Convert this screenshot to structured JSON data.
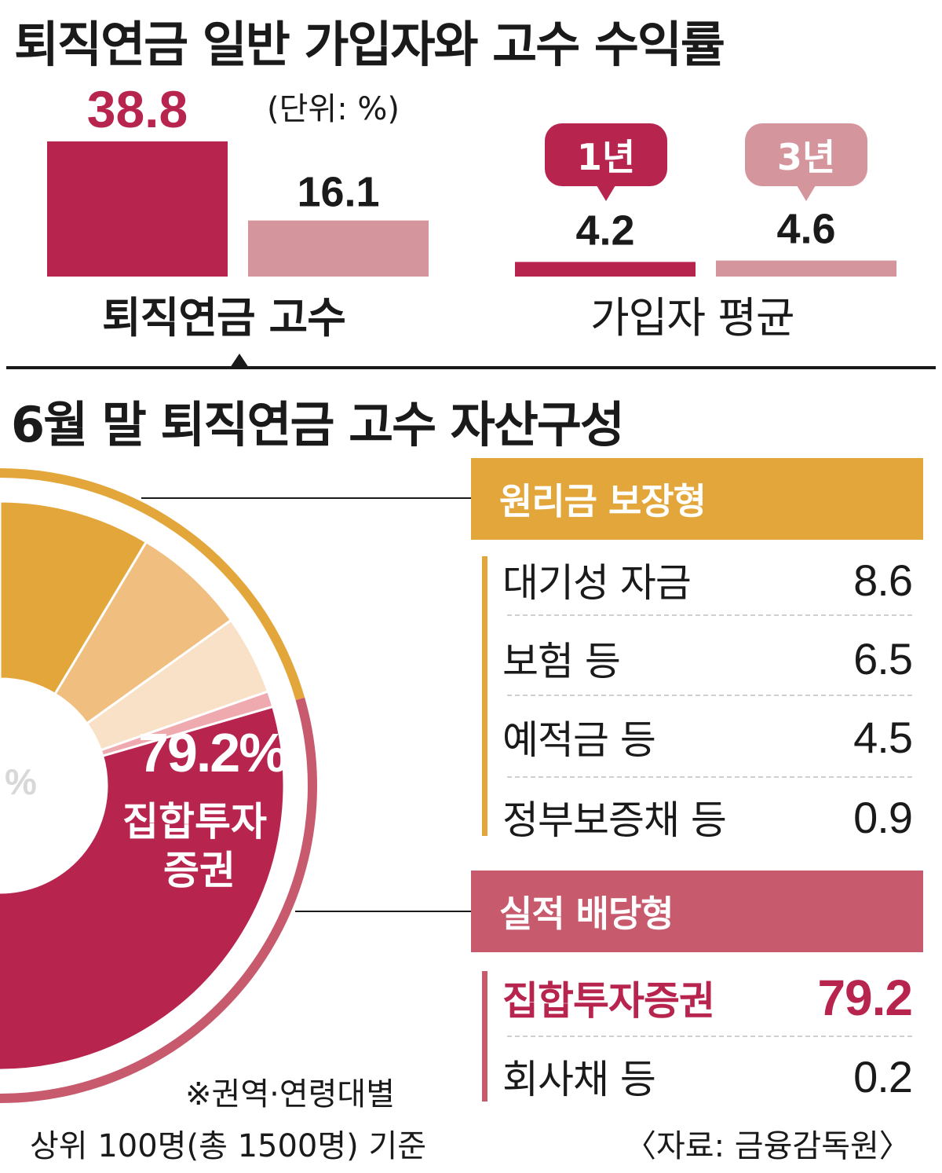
{
  "top_title": "퇴직연금 일반 가입자와 고수 수익률",
  "unit_label": "(단위: %)",
  "expert_label": "퇴직연금 고수",
  "avg_label": "가입자 평균",
  "bubble_1y": "1년",
  "bubble_3y": "3년",
  "bottom_title": "6월 말 퇴직연금 고수 자산구성",
  "donut_center_fragment": "%",
  "donut_value_label": "79.2%",
  "donut_name_line1": "집합투자",
  "donut_name_line2": "증권",
  "guaranteed": {
    "title": "원리금 보장형",
    "items": [
      {
        "label": "대기성 자금",
        "value": "8.6"
      },
      {
        "label": "보험 등",
        "value": "6.5"
      },
      {
        "label": "예적금 등",
        "value": "4.5"
      },
      {
        "label": "정부보증채 등",
        "value": "0.9"
      }
    ]
  },
  "performance": {
    "title": "실적 배당형",
    "items": [
      {
        "label": "집합투자증권",
        "value": "79.2"
      },
      {
        "label": "회사채 등",
        "value": "0.2"
      }
    ]
  },
  "footnote_line1": "※권역·연령대별",
  "footnote_line2": "상위 100명(총 1500명) 기준",
  "source": "〈자료: 금융감독원〉",
  "colors": {
    "dark": "#b7254f",
    "light": "#d5959c",
    "gold": "#e3a63a",
    "rose": "#c75b6d",
    "seg2": "#f0bf80",
    "seg3": "#f8e1c6",
    "seg4": "#efaab0"
  },
  "chart_data": [
    {
      "type": "bar",
      "categories": [
        "퇴직연금 고수",
        "가입자 평균"
      ],
      "series": [
        {
          "name": "1년",
          "values": [
            38.8,
            4.2
          ]
        },
        {
          "name": "3년",
          "values": [
            16.1,
            4.6
          ]
        }
      ],
      "ylim": [
        0,
        38.8
      ]
    },
    {
      "type": "pie",
      "title": "6월 말 퇴직연금 고수 자산구성",
      "categories": [
        "대기성 자금",
        "보험 등",
        "예적금 등",
        "정부보증채 등",
        "집합투자증권",
        "회사채 등"
      ],
      "values": [
        8.6,
        6.5,
        4.5,
        0.9,
        79.2,
        0.2
      ]
    }
  ]
}
